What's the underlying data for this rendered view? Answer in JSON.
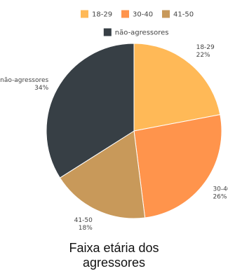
{
  "chart_data": {
    "type": "pie",
    "title_lines": [
      "Faixa etária dos",
      "agressores"
    ],
    "legend": [
      {
        "name": "18-29",
        "color": "#ffb957"
      },
      {
        "name": "30-40",
        "color": "#ff944c"
      },
      {
        "name": "41-50",
        "color": "#c8995a"
      },
      {
        "name": "não-agressores",
        "color": "#373f45"
      }
    ],
    "slices": [
      {
        "label": "18-29",
        "value": 22,
        "value_label": "22%",
        "color": "#ffb957"
      },
      {
        "label": "30-40",
        "value": 26,
        "value_label": "26%",
        "color": "#ff944c"
      },
      {
        "label": "41-50",
        "value": 18,
        "value_label": "18%",
        "color": "#c8995a"
      },
      {
        "label": "não-agressores",
        "value": 34,
        "value_label": "34%",
        "color": "#373f45"
      }
    ],
    "legend_position": "top",
    "start_angle": "top",
    "direction": "clockwise"
  }
}
